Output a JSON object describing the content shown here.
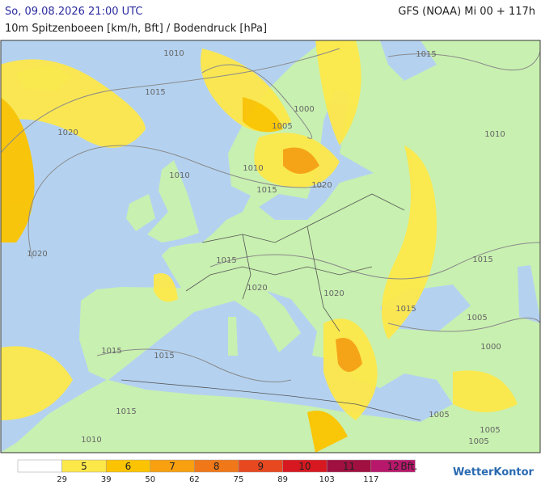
{
  "header": {
    "datetime": "So, 09.08.2026 21:00 UTC",
    "model": "GFS (NOAA) Mi 00 + 117h",
    "subtitle": "10m Spitzenboeen [km/h, Bft] / Bodendruck [hPa]"
  },
  "isobar_labels": [
    "1010",
    "1015",
    "1015",
    "1000",
    "1005",
    "1020",
    "1010",
    "1010",
    "1015",
    "1020",
    "1020",
    "1015",
    "1015",
    "1020",
    "1020",
    "1015",
    "1005",
    "1015",
    "1015",
    "1000",
    "1015",
    "1005",
    "1005",
    "1010",
    "1005",
    "1010"
  ],
  "legend": {
    "classes": [
      {
        "color": "#ffffff"
      },
      {
        "label": "5",
        "color": "#fde84a"
      },
      {
        "label": "6",
        "color": "#fcc400"
      },
      {
        "label": "7",
        "color": "#f8a010"
      },
      {
        "label": "8",
        "color": "#f07818"
      },
      {
        "label": "9",
        "color": "#e84820"
      },
      {
        "label": "10",
        "color": "#d81820"
      },
      {
        "label": "11",
        "color": "#a01040"
      },
      {
        "label": "12",
        "color": "#b8186c"
      }
    ],
    "unit": "Bft.",
    "thresholds": [
      "29",
      "39",
      "50",
      "62",
      "75",
      "89",
      "103",
      "117"
    ]
  },
  "logo": "WetterKontor"
}
